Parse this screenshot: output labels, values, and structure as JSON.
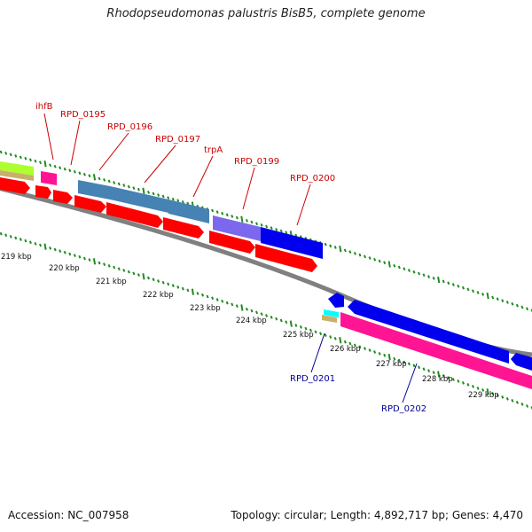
{
  "title": "Rhodopseudomonas palustris BisB5, complete genome",
  "footer": {
    "accession": "Accession: NC_007958",
    "summary": "Topology: circular; Length: 4,892,717 bp; Genes: 4,470"
  },
  "colors": {
    "cds": "#ff0000",
    "label_forward": "#cc0000",
    "label_reverse": "#000099",
    "backbone": "#888888",
    "tick": "#228b22",
    "steelblue": "#4682b4",
    "blue": "#0000ee",
    "slateblue": "#7b68ee",
    "pink": "#ff1493",
    "lime": "#adff2f",
    "cyan": "#00ffff",
    "tan": "#c8b06a"
  },
  "scale_labels": [
    "219 kbp",
    "220 kbp",
    "221 kbp",
    "222 kbp",
    "223 kbp",
    "224 kbp",
    "225 kbp",
    "226 kbp",
    "227 kbp",
    "228 kbp",
    "229 kbp"
  ],
  "forward_labels": [
    "ihfB",
    "RPD_0195",
    "RPD_0196",
    "RPD_0197",
    "trpA",
    "RPD_0199",
    "RPD_0200"
  ],
  "reverse_labels": [
    "RPD_0201",
    "RPD_0202"
  ]
}
